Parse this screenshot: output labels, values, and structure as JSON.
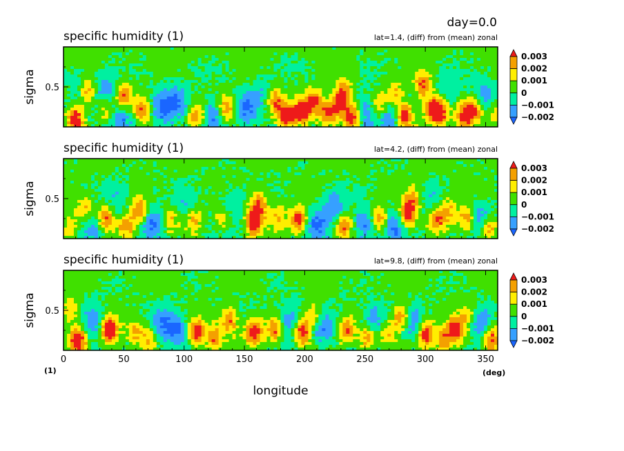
{
  "header": {
    "day_label": "day=0.0"
  },
  "colors": {
    "levels": [
      {
        "label": "< -0.002",
        "color": "#1a66ff"
      },
      {
        "label": "-0.002 .. -0.001",
        "color": "#36a0ff"
      },
      {
        "label": "-0.001 .. 0",
        "color": "#00f0a0"
      },
      {
        "label": "0 .. 0.001",
        "color": "#40e000"
      },
      {
        "label": "0.001 .. 0.002",
        "color": "#ffee00"
      },
      {
        "label": "0.002 .. 0.003",
        "color": "#f4a000"
      },
      {
        "label": "> 0.003",
        "color": "#ee1a1a"
      }
    ]
  },
  "chart_data": [
    {
      "type": "heatmap",
      "title": "specific humidity (1)",
      "subtitle": "lat=1.4, (diff) from (mean) zonal",
      "xlabel": "",
      "ylabel": "sigma",
      "xlim": [
        0,
        360
      ],
      "ylim": [
        0.1,
        0.9
      ],
      "x_ticks": [
        0,
        50,
        100,
        150,
        200,
        250,
        300,
        350
      ],
      "y_ticks": [
        0.5
      ],
      "y_tick_labels": [
        "0.5"
      ],
      "colorbar_levels": [
        -0.002,
        -0.001,
        0,
        0.001,
        0.002,
        0.003
      ],
      "colorbar_labels": [
        "0.003",
        "0.002",
        "0.001",
        "0",
        "−0.001",
        "−0.002"
      ],
      "hotspots": [
        [
          10,
          0.18,
          0.004
        ],
        [
          20,
          0.45,
          0.003
        ],
        [
          35,
          0.28,
          0.002
        ],
        [
          50,
          0.4,
          0.003
        ],
        [
          65,
          0.26,
          0.003
        ],
        [
          110,
          0.2,
          0.003
        ],
        [
          135,
          0.28,
          0.003
        ],
        [
          175,
          0.36,
          0.003
        ],
        [
          185,
          0.2,
          0.004
        ],
        [
          198,
          0.25,
          0.004
        ],
        [
          208,
          0.36,
          0.003
        ],
        [
          218,
          0.24,
          0.003
        ],
        [
          228,
          0.3,
          0.003
        ],
        [
          232,
          0.44,
          0.003
        ],
        [
          240,
          0.2,
          0.004
        ],
        [
          262,
          0.3,
          0.002
        ],
        [
          275,
          0.42,
          0.002
        ],
        [
          283,
          0.2,
          0.004
        ],
        [
          298,
          0.52,
          0.003
        ],
        [
          305,
          0.28,
          0.003
        ],
        [
          312,
          0.24,
          0.004
        ],
        [
          333,
          0.2,
          0.004
        ],
        [
          342,
          0.28,
          0.003
        ],
        [
          358,
          0.25,
          0.002
        ]
      ],
      "coldspots": [
        [
          15,
          0.5,
          -0.001
        ],
        [
          35,
          0.45,
          -0.002
        ],
        [
          48,
          0.2,
          -0.002
        ],
        [
          82,
          0.28,
          -0.002
        ],
        [
          95,
          0.35,
          -0.002
        ],
        [
          125,
          0.22,
          -0.002
        ],
        [
          152,
          0.28,
          -0.002
        ],
        [
          165,
          0.42,
          -0.001
        ],
        [
          250,
          0.25,
          -0.002
        ],
        [
          270,
          0.2,
          -0.002
        ],
        [
          320,
          0.45,
          -0.001
        ],
        [
          348,
          0.4,
          -0.002
        ]
      ]
    },
    {
      "type": "heatmap",
      "title": "specific humidity (1)",
      "subtitle": "lat=4.2, (diff) from (mean) zonal",
      "xlabel": "",
      "ylabel": "sigma",
      "xlim": [
        0,
        360
      ],
      "ylim": [
        0.1,
        0.9
      ],
      "x_ticks": [
        0,
        50,
        100,
        150,
        200,
        250,
        300,
        350
      ],
      "y_ticks": [
        0.5
      ],
      "y_tick_labels": [
        "0.5"
      ],
      "colorbar_levels": [
        -0.002,
        -0.001,
        0,
        0.001,
        0.002,
        0.003
      ],
      "colorbar_labels": [
        "0.003",
        "0.002",
        "0.001",
        "0",
        "−0.001",
        "−0.002"
      ],
      "hotspots": [
        [
          5,
          0.22,
          0.002
        ],
        [
          18,
          0.4,
          0.002
        ],
        [
          35,
          0.3,
          0.003
        ],
        [
          52,
          0.22,
          0.003
        ],
        [
          63,
          0.38,
          0.003
        ],
        [
          88,
          0.3,
          0.002
        ],
        [
          108,
          0.28,
          0.002
        ],
        [
          132,
          0.3,
          0.002
        ],
        [
          158,
          0.26,
          0.004
        ],
        [
          162,
          0.45,
          0.003
        ],
        [
          178,
          0.3,
          0.002
        ],
        [
          195,
          0.28,
          0.004
        ],
        [
          232,
          0.22,
          0.003
        ],
        [
          262,
          0.3,
          0.003
        ],
        [
          285,
          0.35,
          0.004
        ],
        [
          290,
          0.5,
          0.002
        ],
        [
          310,
          0.3,
          0.003
        ],
        [
          320,
          0.38,
          0.002
        ],
        [
          335,
          0.3,
          0.003
        ],
        [
          352,
          0.2,
          0.003
        ]
      ],
      "coldspots": [
        [
          25,
          0.2,
          -0.002
        ],
        [
          45,
          0.5,
          -0.001
        ],
        [
          75,
          0.25,
          -0.002
        ],
        [
          100,
          0.42,
          -0.001
        ],
        [
          140,
          0.45,
          -0.001
        ],
        [
          210,
          0.22,
          -0.002
        ],
        [
          225,
          0.4,
          -0.002
        ],
        [
          250,
          0.25,
          -0.002
        ],
        [
          275,
          0.22,
          -0.002
        ],
        [
          305,
          0.45,
          -0.001
        ],
        [
          345,
          0.3,
          -0.002
        ]
      ]
    },
    {
      "type": "heatmap",
      "title": "specific humidity (1)",
      "subtitle": "lat=9.8, (diff) from (mean) zonal",
      "xlabel": "longitude",
      "ylabel": "sigma",
      "xlim": [
        0,
        360
      ],
      "ylim": [
        0.1,
        0.9
      ],
      "x_ticks": [
        0,
        50,
        100,
        150,
        200,
        250,
        300,
        350
      ],
      "x_tick_labels": [
        "0",
        "50",
        "100",
        "150",
        "200",
        "250",
        "300",
        "350"
      ],
      "y_ticks": [
        0.5
      ],
      "y_tick_labels": [
        "0.5"
      ],
      "x_unit": "(deg)",
      "y_unit": "(1)",
      "colorbar_levels": [
        -0.002,
        -0.001,
        0,
        0.001,
        0.002,
        0.003
      ],
      "colorbar_labels": [
        "0.003",
        "0.002",
        "0.001",
        "0",
        "−0.001",
        "−0.002"
      ],
      "hotspots": [
        [
          6,
          0.5,
          0.002
        ],
        [
          12,
          0.2,
          0.004
        ],
        [
          38,
          0.3,
          0.005
        ],
        [
          58,
          0.28,
          0.002
        ],
        [
          70,
          0.22,
          0.002
        ],
        [
          110,
          0.28,
          0.004
        ],
        [
          125,
          0.22,
          0.003
        ],
        [
          138,
          0.4,
          0.003
        ],
        [
          158,
          0.28,
          0.004
        ],
        [
          175,
          0.3,
          0.003
        ],
        [
          198,
          0.28,
          0.004
        ],
        [
          207,
          0.45,
          0.002
        ],
        [
          235,
          0.3,
          0.003
        ],
        [
          252,
          0.22,
          0.003
        ],
        [
          268,
          0.28,
          0.002
        ],
        [
          280,
          0.42,
          0.003
        ],
        [
          300,
          0.26,
          0.004
        ],
        [
          315,
          0.2,
          0.003
        ],
        [
          325,
          0.3,
          0.004
        ],
        [
          336,
          0.42,
          0.002
        ],
        [
          355,
          0.22,
          0.003
        ]
      ],
      "coldspots": [
        [
          25,
          0.4,
          -0.002
        ],
        [
          82,
          0.35,
          -0.002
        ],
        [
          95,
          0.3,
          -0.002
        ],
        [
          188,
          0.4,
          -0.002
        ],
        [
          215,
          0.3,
          -0.002
        ],
        [
          258,
          0.4,
          -0.002
        ],
        [
          290,
          0.35,
          -0.002
        ],
        [
          345,
          0.35,
          -0.002
        ]
      ]
    }
  ]
}
